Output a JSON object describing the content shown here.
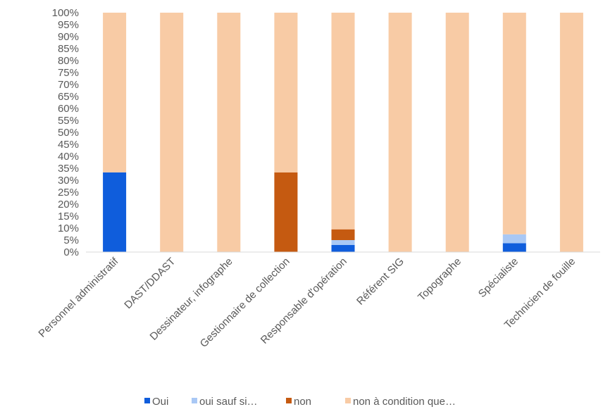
{
  "chart_data": {
    "type": "bar",
    "stacked": true,
    "normalized": true,
    "categories": [
      "Personnel administratif",
      "DAST/DDAST",
      "Dessinateur, infographe",
      "Gestionnaire de collection",
      "Responsable d'opération",
      "Référent SIG",
      "Topographe",
      "Spécialiste",
      "Technicien de fouille"
    ],
    "series": [
      {
        "name": "Oui",
        "color": "#0f5ddc",
        "values": [
          33.3,
          0,
          0,
          0,
          3,
          0,
          0,
          3.7,
          0
        ]
      },
      {
        "name": "oui sauf si…",
        "color": "#a9c8f5",
        "values": [
          0,
          0,
          0,
          0,
          2,
          0,
          0,
          3.7,
          0
        ]
      },
      {
        "name": "non",
        "color": "#c55a11",
        "values": [
          0,
          0,
          0,
          33.3,
          4.5,
          0,
          0,
          0,
          0
        ]
      },
      {
        "name": "non à condition que…",
        "color": "#f8cba5",
        "values": [
          66.7,
          100,
          100,
          66.7,
          90.5,
          100,
          100,
          92.6,
          100
        ]
      }
    ],
    "yticks": [
      "0%",
      "5%",
      "10%",
      "15%",
      "20%",
      "25%",
      "30%",
      "35%",
      "40%",
      "45%",
      "50%",
      "55%",
      "60%",
      "65%",
      "70%",
      "75%",
      "80%",
      "85%",
      "90%",
      "95%",
      "100%"
    ],
    "ylim": [
      0,
      100
    ],
    "grid": false,
    "legend_position": "bottom"
  }
}
